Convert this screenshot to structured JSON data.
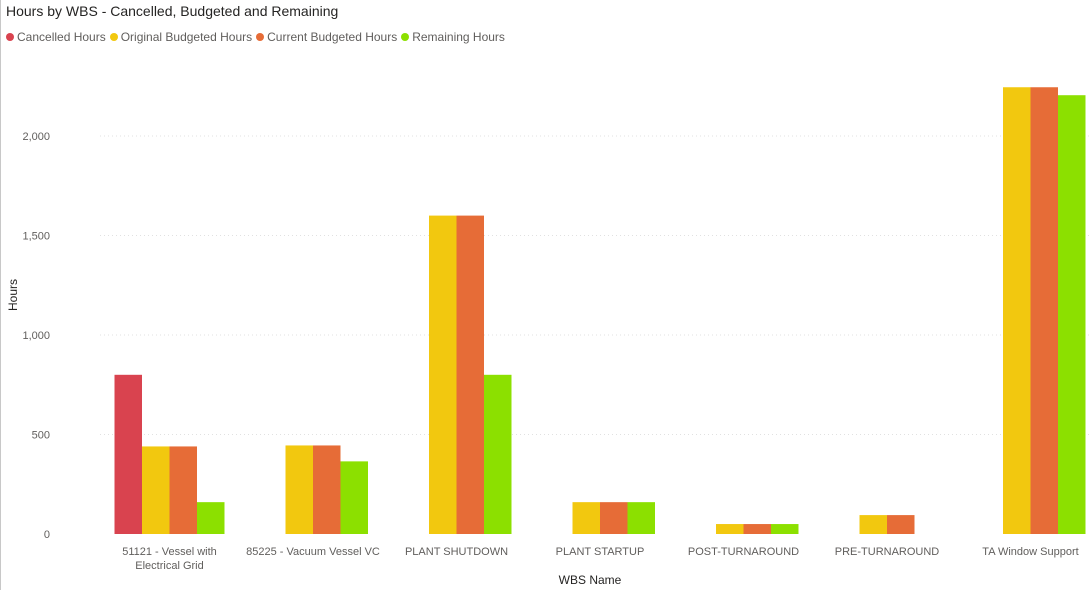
{
  "chart_data": {
    "type": "bar",
    "title": "Hours by WBS - Cancelled, Budgeted and Remaining",
    "xlabel": "WBS Name",
    "ylabel": "Hours",
    "categories": [
      "51121 - Vessel with Electrical Grid",
      "85225 - Vacuum Vessel VC",
      "PLANT SHUTDOWN",
      "PLANT STARTUP",
      "POST-TURNAROUND",
      "PRE-TURNAROUND",
      "TA Window Support"
    ],
    "category_label_lines": [
      [
        "51121 - Vessel with",
        "Electrical Grid"
      ],
      [
        "85225 - Vacuum Vessel VC"
      ],
      [
        "PLANT SHUTDOWN"
      ],
      [
        "PLANT STARTUP"
      ],
      [
        "POST-TURNAROUND"
      ],
      [
        "PRE-TURNAROUND"
      ],
      [
        "TA Window Support"
      ]
    ],
    "series": [
      {
        "name": "Cancelled Hours",
        "color": "#d9434f",
        "values": [
          800,
          null,
          null,
          null,
          null,
          null,
          null
        ]
      },
      {
        "name": "Original Budgeted Hours",
        "color": "#f2c80f",
        "values": [
          440,
          445,
          1600,
          160,
          50,
          95,
          2245
        ]
      },
      {
        "name": "Current Budgeted Hours",
        "color": "#e66c37",
        "values": [
          440,
          445,
          1600,
          160,
          50,
          95,
          2245
        ]
      },
      {
        "name": "Remaining Hours",
        "color": "#8ce000",
        "values": [
          160,
          365,
          800,
          160,
          50,
          null,
          2205
        ]
      }
    ],
    "yticks": [
      0,
      500,
      1000,
      1500,
      2000
    ],
    "ytick_labels": [
      "0",
      "500",
      "1,000",
      "1,500",
      "2,000"
    ],
    "ylim": [
      0,
      2300
    ],
    "grid": true,
    "legend_position": "top-left"
  }
}
